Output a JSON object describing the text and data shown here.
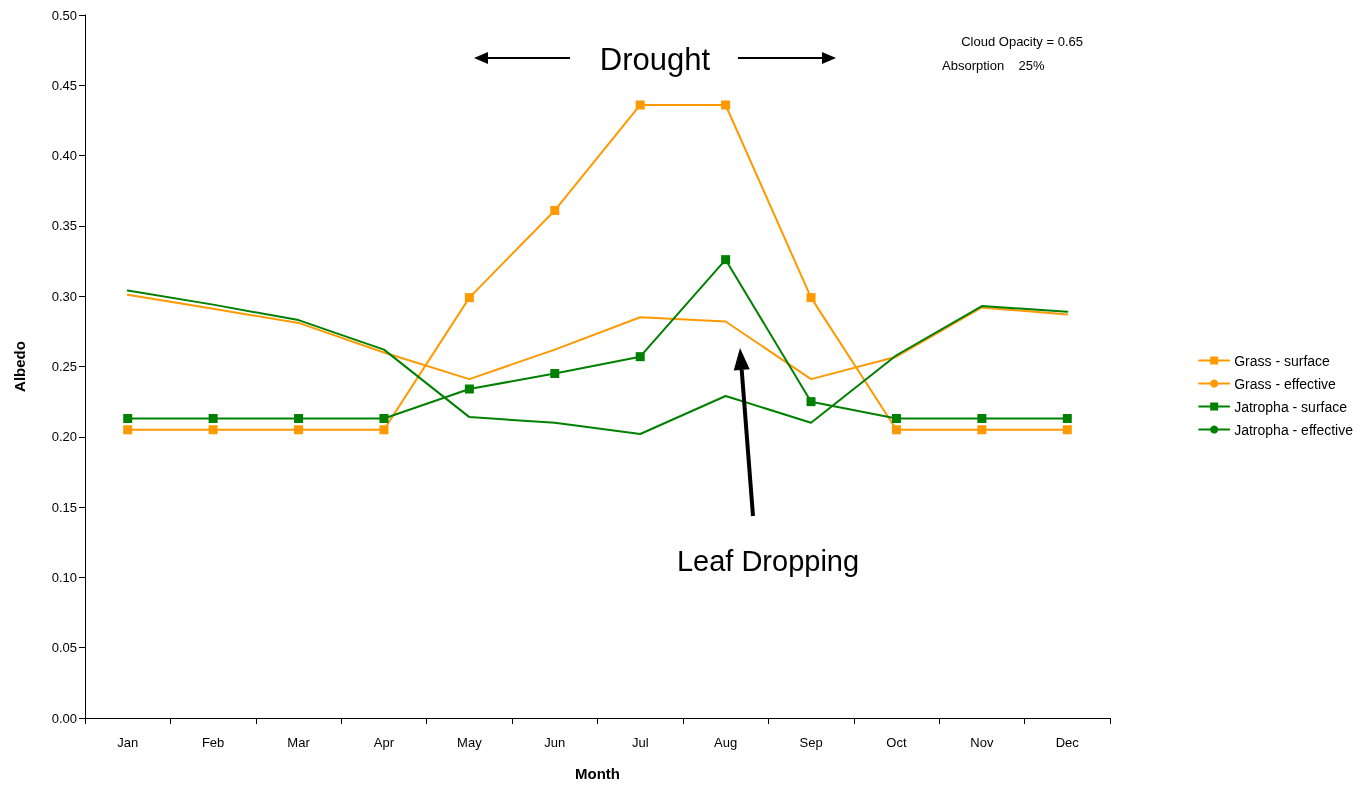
{
  "chart_data": {
    "type": "line",
    "xlabel": "Month",
    "ylabel": "Albedo",
    "categories": [
      "Jan",
      "Feb",
      "Mar",
      "Apr",
      "May",
      "Jun",
      "Jul",
      "Aug",
      "Sep",
      "Oct",
      "Nov",
      "Dec"
    ],
    "series": [
      {
        "name": "Grass - surface",
        "color": "#ff9900",
        "marker": "square",
        "values": [
          0.205,
          0.205,
          0.205,
          0.205,
          0.299,
          0.361,
          0.436,
          0.436,
          0.299,
          0.205,
          0.205,
          0.205
        ]
      },
      {
        "name": "Grass - effective",
        "color": "#ff9900",
        "marker": "none",
        "values": [
          0.301,
          0.291,
          0.281,
          0.26,
          0.241,
          0.262,
          0.285,
          0.282,
          0.241,
          0.257,
          0.292,
          0.287
        ]
      },
      {
        "name": "Jatropha - surface",
        "color": "#008000",
        "marker": "square",
        "values": [
          0.213,
          0.213,
          0.213,
          0.213,
          0.234,
          0.245,
          0.257,
          0.326,
          0.225,
          0.213,
          0.213,
          0.213
        ]
      },
      {
        "name": "Jatropha - effective",
        "color": "#008000",
        "marker": "none",
        "values": [
          0.304,
          0.294,
          0.283,
          0.262,
          0.214,
          0.21,
          0.202,
          0.229,
          0.21,
          0.258,
          0.293,
          0.289
        ]
      }
    ],
    "ylim": [
      0,
      0.5
    ],
    "yticks": [
      {
        "value": 0,
        "label": "0.00"
      },
      {
        "value": 0.05,
        "label": "0.05"
      },
      {
        "value": 0.1,
        "label": "0.10"
      },
      {
        "value": 0.15,
        "label": "0.15"
      },
      {
        "value": 0.2,
        "label": "0.20"
      },
      {
        "value": 0.25,
        "label": "0.25"
      },
      {
        "value": 0.3,
        "label": "0.30"
      },
      {
        "value": 0.35,
        "label": "0.35"
      },
      {
        "value": 0.4,
        "label": "0.40"
      },
      {
        "value": 0.45,
        "label": "0.45"
      },
      {
        "value": 0.5,
        "label": "0.50"
      }
    ],
    "grid": false,
    "legend": "right",
    "line_style": "solid",
    "annotations": [
      "Drought",
      "Leaf Dropping",
      "Cloud Opacity = 0.65",
      "Absorption    25%"
    ]
  }
}
